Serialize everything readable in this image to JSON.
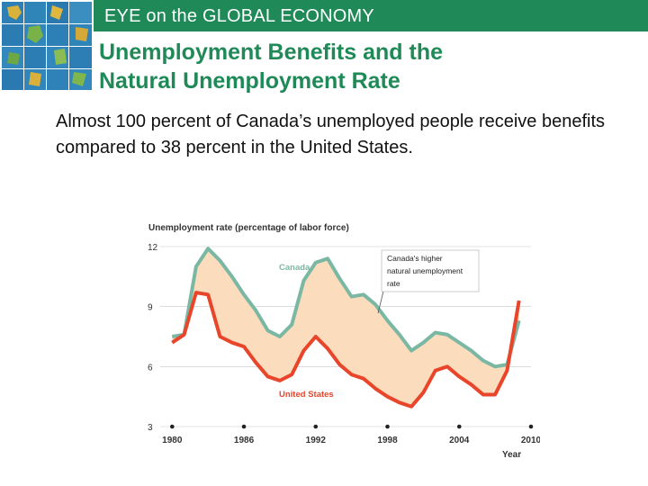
{
  "header": {
    "title": "EYE on the GLOBAL ECONOMY"
  },
  "slide": {
    "title_line1": "Unemployment Benefits and the",
    "title_line2": "Natural Unemployment Rate",
    "body": "Almost 100 percent of Canada’s unemployed people receive benefits compared to 38 percent in the United States."
  },
  "colors": {
    "banner": "#1f8a57",
    "title": "#1f8a57",
    "canada": "#7bb8a3",
    "us": "#e8452b",
    "gap_fill": "#fbdcbc"
  },
  "chart_data": {
    "type": "line",
    "title": "Unemployment rate (percentage of labor force)",
    "xlabel": "Year",
    "ylabel": "",
    "xlim": [
      1979,
      2010
    ],
    "ylim": [
      3,
      12
    ],
    "yticks": [
      3,
      6,
      9,
      12
    ],
    "xticks": [
      1980,
      1986,
      1992,
      1998,
      2004,
      2010
    ],
    "shaded_between_series": true,
    "annotation": "Canada's higher natural unemployment rate",
    "series": [
      {
        "name": "Canada",
        "color": "#7bb8a3",
        "x": [
          1980,
          1981,
          1982,
          1983,
          1984,
          1985,
          1986,
          1987,
          1988,
          1989,
          1990,
          1991,
          1992,
          1993,
          1994,
          1995,
          1996,
          1997,
          1998,
          1999,
          2000,
          2001,
          2002,
          2003,
          2004,
          2005,
          2006,
          2007,
          2008,
          2009
        ],
        "values": [
          7.5,
          7.6,
          11.0,
          11.9,
          11.3,
          10.5,
          9.6,
          8.8,
          7.8,
          7.5,
          8.1,
          10.3,
          11.2,
          11.4,
          10.4,
          9.5,
          9.6,
          9.1,
          8.3,
          7.6,
          6.8,
          7.2,
          7.7,
          7.6,
          7.2,
          6.8,
          6.3,
          6.0,
          6.1,
          8.3
        ]
      },
      {
        "name": "United States",
        "color": "#e8452b",
        "x": [
          1980,
          1981,
          1982,
          1983,
          1984,
          1985,
          1986,
          1987,
          1988,
          1989,
          1990,
          1991,
          1992,
          1993,
          1994,
          1995,
          1996,
          1997,
          1998,
          1999,
          2000,
          2001,
          2002,
          2003,
          2004,
          2005,
          2006,
          2007,
          2008,
          2009
        ],
        "values": [
          7.2,
          7.6,
          9.7,
          9.6,
          7.5,
          7.2,
          7.0,
          6.2,
          5.5,
          5.3,
          5.6,
          6.8,
          7.5,
          6.9,
          6.1,
          5.6,
          5.4,
          4.9,
          4.5,
          4.2,
          4.0,
          4.7,
          5.8,
          6.0,
          5.5,
          5.1,
          4.6,
          4.6,
          5.8,
          9.3
        ]
      }
    ]
  }
}
